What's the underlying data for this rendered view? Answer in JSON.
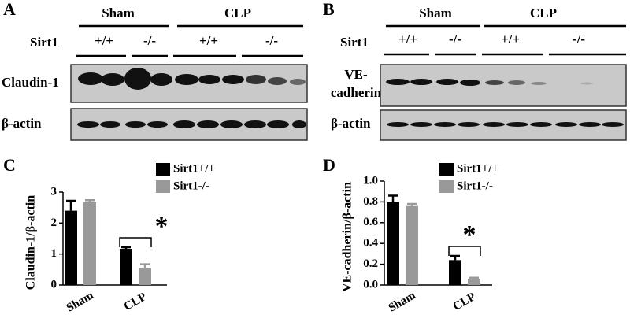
{
  "blots": [
    {
      "panel": "A",
      "groups": [
        "Sham",
        "CLP"
      ],
      "row_label": "Sirt1",
      "genotypes": [
        "+/+",
        "-/-",
        "+/+",
        "-/-"
      ],
      "bands": [
        "Claudin-1",
        "β-actin"
      ]
    },
    {
      "panel": "B",
      "groups": [
        "Sham",
        "CLP"
      ],
      "row_label": "Sirt1",
      "genotypes": [
        "+/+",
        "-/-",
        "+/+",
        "-/-"
      ],
      "bands": [
        "VE-",
        "cadherin",
        "β-actin"
      ]
    }
  ],
  "chart_data": [
    {
      "type": "bar",
      "panel": "C",
      "y_label": "Claudin-1/β-actin",
      "categories": [
        "Sham",
        "CLP"
      ],
      "series": [
        {
          "name": "Sirt1+/+",
          "color": "#000000",
          "values": [
            2.4,
            1.17
          ],
          "errors": [
            0.32,
            0.05
          ]
        },
        {
          "name": "Sirt1-/-",
          "color": "#999999",
          "values": [
            2.67,
            0.55
          ],
          "errors": [
            0.07,
            0.12
          ]
        }
      ],
      "ylim": [
        0,
        3
      ],
      "yticks": [
        0,
        1,
        2,
        3
      ],
      "annotation": "*"
    },
    {
      "type": "bar",
      "panel": "D",
      "y_label": "VE-cadherin/β-actin",
      "categories": [
        "Sham",
        "CLP"
      ],
      "series": [
        {
          "name": "Sirt1+/+",
          "color": "#000000",
          "values": [
            0.8,
            0.24
          ],
          "errors": [
            0.06,
            0.04
          ]
        },
        {
          "name": "Sirt1-/-",
          "color": "#999999",
          "values": [
            0.76,
            0.06
          ],
          "errors": [
            0.02,
            0.01
          ]
        }
      ],
      "ylim": [
        0,
        1
      ],
      "yticks": [
        {
          "value": 0,
          "label": "0.0"
        },
        0.2,
        0.4,
        0.6,
        0.8,
        {
          "value": 1,
          "label": "1.0"
        }
      ],
      "annotation": "*"
    }
  ]
}
